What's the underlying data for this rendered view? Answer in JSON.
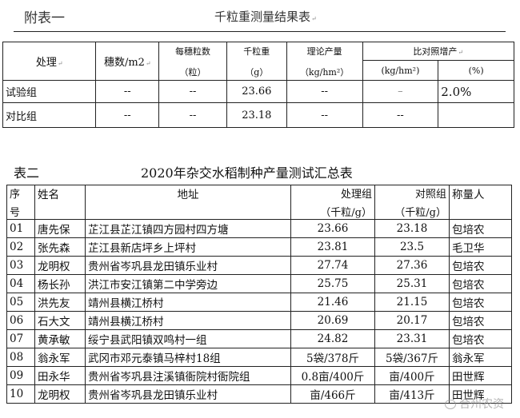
{
  "table1": {
    "label": "附表一",
    "title": "千粒重测量结果表",
    "headers": {
      "treatment": "处理",
      "panicles": "穗数/m2",
      "grains_per_panicle": "每穗粒数",
      "grains_unit": "（粒）",
      "tgw": "千粒重",
      "tgw_unit": "（g）",
      "yield": "理论产量",
      "yield_unit": "（kg/hm²）",
      "increase": "比对照增产",
      "increase_kg": "(kg/hm²)",
      "increase_pct": "(%)"
    },
    "rows": [
      {
        "name": "试验组",
        "panicles": "--",
        "grains": "--",
        "tgw": "23.66",
        "yield": "--",
        "inc_kg": "–",
        "inc_pct": "2.0%"
      },
      {
        "name": "对比组",
        "panicles": "--",
        "grains": "--",
        "tgw": "23.18",
        "yield": "--",
        "inc_kg": "--",
        "inc_pct": ""
      }
    ]
  },
  "table2": {
    "label": "表二",
    "title": "2020年杂交水稻制种产量测试汇总表",
    "headers": {
      "no_1": "序",
      "no_2": "号",
      "name": "姓名",
      "address": "地址",
      "treat": "处理组",
      "treat_unit": "（千粒/g）",
      "control": "对照组",
      "control_unit": "（千粒/g）",
      "weigher": "称量人"
    },
    "rows": [
      {
        "no": "01",
        "name": "唐先保",
        "address": "芷江县芷江镇四方园村四方塘",
        "treat": "23.66",
        "control": "23.18",
        "weigher": "包培农"
      },
      {
        "no": "02",
        "name": "张先森",
        "address": "芷江县新店坪乡上坪村",
        "treat": "23.81",
        "control": "23.5",
        "weigher": "毛卫华"
      },
      {
        "no": "03",
        "name": "龙明权",
        "address": "贵州省岑巩县龙田镇乐业村",
        "treat": "27.74",
        "control": "27.36",
        "weigher": "包培农"
      },
      {
        "no": "04",
        "name": "杨长孙",
        "address": "洪江市安江镇第二中学旁边",
        "treat": "25.75",
        "control": "25.31",
        "weigher": "包培农"
      },
      {
        "no": "05",
        "name": "洪先友",
        "address": "靖州县横江桥村",
        "treat": "21.46",
        "control": "21.15",
        "weigher": "包培农"
      },
      {
        "no": "06",
        "name": "石大文",
        "address": "靖州县横江桥村",
        "treat": "20.69",
        "control": "20.17",
        "weigher": "包培农"
      },
      {
        "no": "07",
        "name": "黄承敏",
        "address": "绥宁县武阳镇双鸣村一组",
        "treat": "24.82",
        "control": "23.31",
        "weigher": "包培农"
      },
      {
        "no": "08",
        "name": "翁永军",
        "address": "武冈市邓元泰镇马梓村18组",
        "treat": "5袋/378斤",
        "control": "5袋/367斤",
        "weigher": "翁永军"
      },
      {
        "no": "09",
        "name": "田永华",
        "address": "贵州省岑巩县注溪镇衙院村衙院组",
        "treat": "0.8亩/400斤",
        "control": "亩/400斤",
        "weigher": "田世辉"
      },
      {
        "no": "10",
        "name": "龙明权",
        "address": "贵州省岑巩县龙田镇乐业村",
        "treat": "亩/466斤",
        "control": "亩/413斤",
        "weigher": "田世辉"
      }
    ]
  },
  "watermark": "合州农资"
}
